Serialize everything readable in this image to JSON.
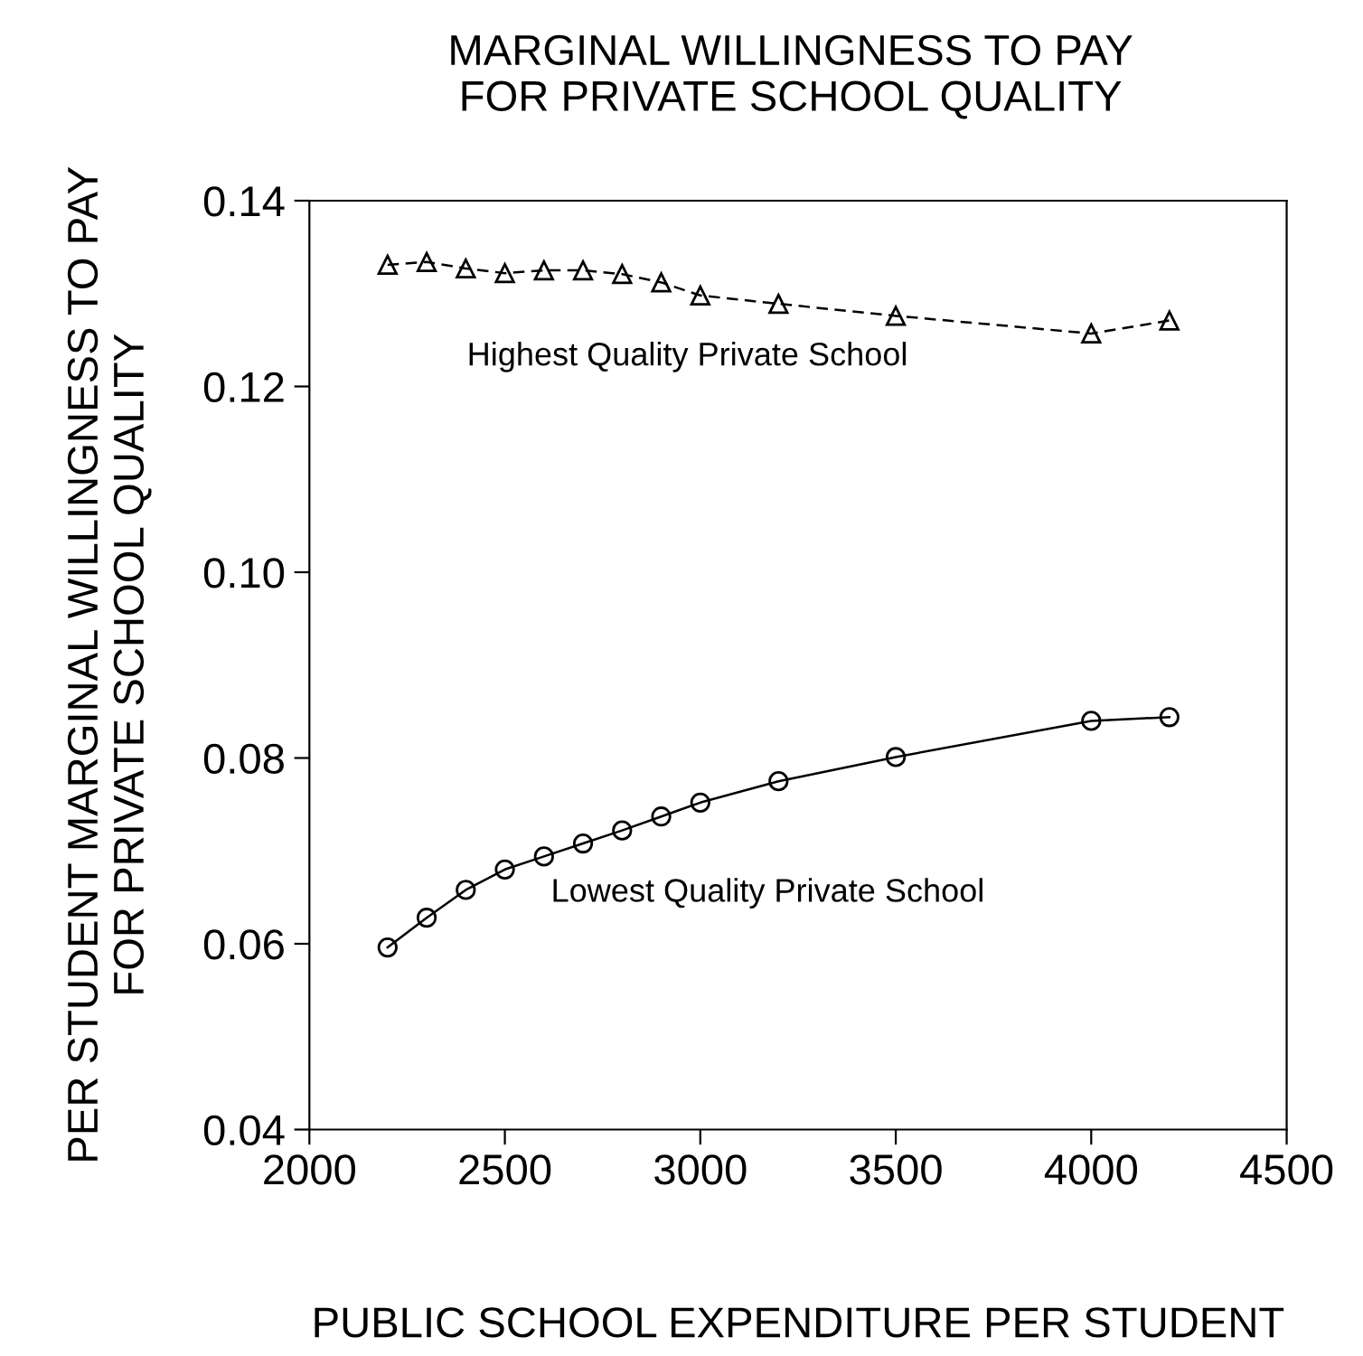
{
  "chart_data": {
    "type": "line",
    "title": "MARGINAL WILLINGNESS TO PAY\nFOR PRIVATE SCHOOL QUALITY",
    "xlabel": "PUBLIC SCHOOL EXPENDITURE PER STUDENT",
    "ylabel": "PER STUDENT MARGINAL WILLINGNESS TO PAY\nFOR PRIVATE SCHOOL QUALITY",
    "x": [
      2200,
      2300,
      2400,
      2500,
      2600,
      2700,
      2800,
      2900,
      3000,
      3200,
      3500,
      4000,
      4200
    ],
    "series": [
      {
        "name": "Highest Quality Private School",
        "color": "#000000",
        "marker": "triangle",
        "line_style": "dashed",
        "values": [
          0.1331,
          0.1334,
          0.1327,
          0.1322,
          0.1325,
          0.1325,
          0.1321,
          0.1312,
          0.1298,
          0.1289,
          0.1276,
          0.1257,
          0.1271
        ]
      },
      {
        "name": "Lowest Quality Private School",
        "color": "#000000",
        "marker": "circle",
        "line_style": "solid",
        "values": [
          0.0596,
          0.0628,
          0.0658,
          0.068,
          0.0694,
          0.0708,
          0.0722,
          0.0737,
          0.0752,
          0.0775,
          0.0801,
          0.084,
          0.0844
        ]
      }
    ],
    "xlim": [
      2000,
      4500
    ],
    "xticks": [
      2000,
      2500,
      3000,
      3500,
      4000,
      4500
    ],
    "ylim": [
      0.04,
      0.14
    ],
    "yticks": [
      {
        "value": 0.04,
        "label": "0.04"
      },
      {
        "value": 0.06,
        "label": "0.06"
      },
      {
        "value": 0.08,
        "label": "0.08"
      },
      {
        "value": 0.1,
        "label": "0.10"
      },
      {
        "value": 0.12,
        "label": "0.12"
      },
      {
        "value": 0.14,
        "label": "0.14"
      }
    ],
    "grid": false,
    "legend": false
  }
}
